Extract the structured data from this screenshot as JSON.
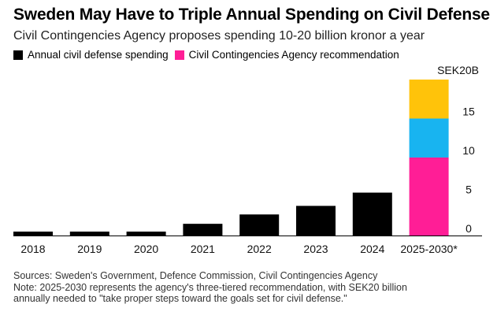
{
  "title": "Sweden May Have to Triple Annual Spending on Civil Defense",
  "subtitle": "Civil Contingencies Agency proposes spending 10-20 billion kronor a year",
  "legend": [
    {
      "label": "Annual civil defense spending",
      "color": "#000000"
    },
    {
      "label": "Civil Contingencies Agency recommendation",
      "color": "#ff1e96"
    }
  ],
  "footer": {
    "sources": "Sources: Sweden's Government, Defence Commission, Civil Contingencies Agency",
    "note_line1": "Note: 2025-2030 represents the agency's three-tiered recommendation, with SEK20 billion",
    "note_line2": "annually needed to \"take proper steps toward the goals set for civil defense.\""
  },
  "chart_data": {
    "type": "bar",
    "categories": [
      "2018",
      "2019",
      "2020",
      "2021",
      "2022",
      "2023",
      "2024",
      "2025-2030*"
    ],
    "values": [
      0.5,
      0.5,
      0.5,
      1.5,
      2.7,
      3.8,
      5.5,
      null
    ],
    "stacked_last": {
      "category": "2025-2030*",
      "segments": [
        {
          "value": 10,
          "color": "#ff1e96"
        },
        {
          "value": 5,
          "color": "#18b4f0"
        },
        {
          "value": 5,
          "color": "#ffc30a"
        }
      ]
    },
    "bar_color": "#000000",
    "ylim": [
      0,
      20
    ],
    "yticks": [
      0,
      5,
      10,
      15
    ],
    "ytick_top_label": "SEK20B",
    "y_axis_side": "right",
    "grid": false
  }
}
